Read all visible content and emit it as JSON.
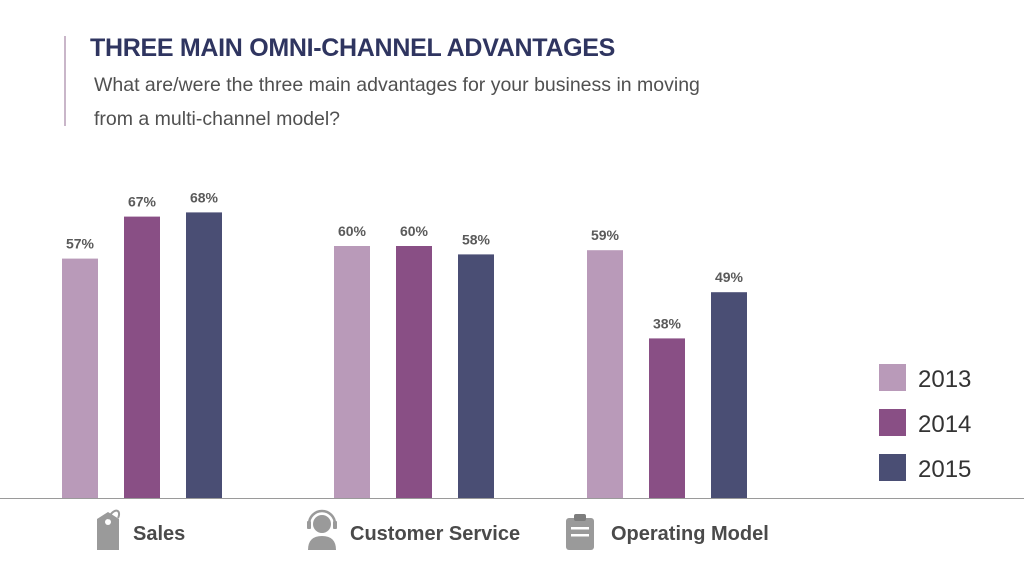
{
  "header": {
    "title": "THREE MAIN OMNI-CHANNEL ADVANTAGES",
    "subtitle": "What are/were the three main advantages for your business in moving from a multi-channel model?"
  },
  "chart_data": {
    "type": "bar",
    "title": "THREE MAIN OMNI-CHANNEL ADVANTAGES",
    "subtitle": "What are/were the three main advantages for your business in moving from a multi-channel model?",
    "categories": [
      "Sales",
      "Customer Service",
      "Operating Model"
    ],
    "category_icons": [
      "price-tag-icon",
      "headset-agent-icon",
      "clipboard-icon"
    ],
    "series": [
      {
        "name": "2013",
        "color": "#b99ab9",
        "values": [
          57,
          60,
          59
        ]
      },
      {
        "name": "2014",
        "color": "#894f85",
        "values": [
          67,
          60,
          38
        ]
      },
      {
        "name": "2015",
        "color": "#4a4e74",
        "values": [
          68,
          58,
          49
        ]
      }
    ],
    "value_suffix": "%",
    "ylim": [
      0,
      100
    ],
    "grid": false,
    "legend_position": "right",
    "xlabel": "",
    "ylabel": ""
  }
}
